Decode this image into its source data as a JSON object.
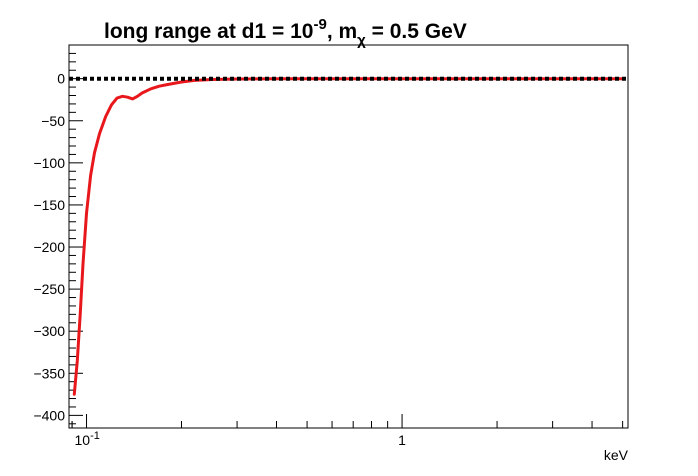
{
  "chart_data": {
    "type": "line",
    "title": {
      "main": "long range at d1 = 10",
      "sup": "-9",
      "mid": ", m",
      "sub": "χ",
      "tail": " = 0.5 GeV"
    },
    "xlabel": "keV",
    "ylabel": "",
    "x_scale": "log",
    "xlim": [
      0.088,
      5.2
    ],
    "ylim": [
      -415,
      40
    ],
    "grid": false,
    "legend": "none",
    "x_ticks": [
      {
        "value": 0.1,
        "base": "10",
        "exp": "-1"
      },
      {
        "value": 1,
        "base": "1",
        "exp": ""
      }
    ],
    "y_ticks": [
      0,
      -50,
      -100,
      -150,
      -200,
      -250,
      -300,
      -350,
      -400
    ],
    "y_tick_labels": [
      "0",
      "−50",
      "−100",
      "−150",
      "−200",
      "−250",
      "−300",
      "−350",
      "−400"
    ],
    "series": [
      {
        "color": "#e8171c",
        "style": "solid",
        "x": [
          0.0915,
          0.0935,
          0.0955,
          0.0975,
          0.1,
          0.103,
          0.106,
          0.11,
          0.115,
          0.12,
          0.125,
          0.13,
          0.135,
          0.14,
          0.145,
          0.15,
          0.16,
          0.17,
          0.18,
          0.2,
          0.22,
          0.25,
          0.3,
          0.4,
          0.5,
          1,
          2,
          5
        ],
        "y": [
          -375,
          -335,
          -280,
          -220,
          -160,
          -115,
          -88,
          -65,
          -45,
          -31,
          -23,
          -21,
          -22,
          -24,
          -21,
          -17,
          -12,
          -9,
          -7,
          -4,
          -2,
          -1,
          -0.4,
          0,
          0,
          0,
          0,
          0
        ]
      },
      {
        "color": "#000000",
        "style": "dotted",
        "x": [
          0.088,
          5.2
        ],
        "y": [
          0,
          0
        ]
      }
    ],
    "colors": {
      "frame": "#000000",
      "background": "#ffffff"
    }
  }
}
